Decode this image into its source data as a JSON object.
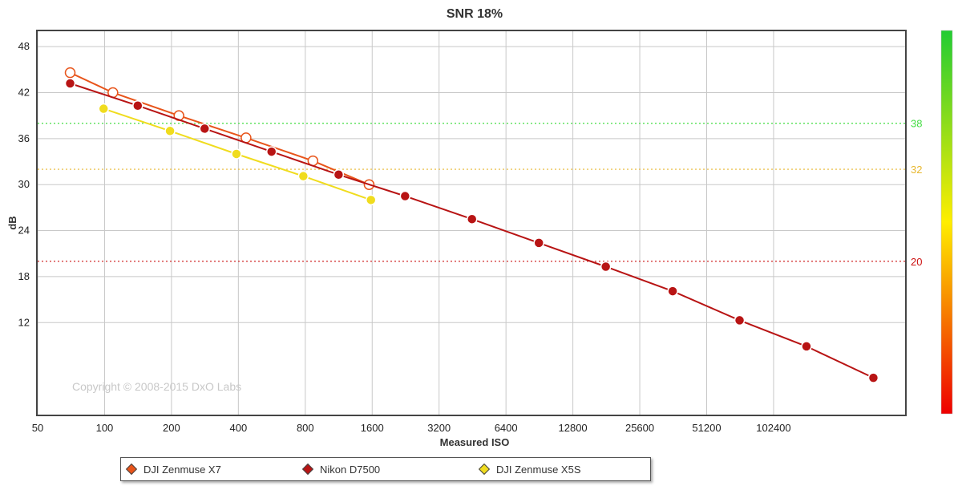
{
  "chart_data": {
    "type": "line",
    "title": "SNR 18%",
    "xlabel": "Measured ISO",
    "ylabel": "dB",
    "x_scale": "log2",
    "xlim": [
      50,
      400000
    ],
    "ylim": [
      0,
      50
    ],
    "x_ticks": [
      50,
      100,
      200,
      400,
      800,
      1600,
      3200,
      6400,
      12800,
      25600,
      51200,
      102400
    ],
    "y_ticks": [
      12,
      18,
      24,
      30,
      36,
      42,
      48
    ],
    "grid": true,
    "legend_position": "bottom",
    "watermark": "Copyright © 2008-2015 DxO Labs",
    "reference_lines": [
      {
        "value": 38,
        "label": "38",
        "color": "#44dd44"
      },
      {
        "value": 32,
        "label": "32",
        "color": "#e8b830"
      },
      {
        "value": 20,
        "label": "20",
        "color": "#cc1111"
      }
    ],
    "colorbar": {
      "top_color": "#22cc33",
      "mid_color": "#ffee00",
      "bottom_color": "#ee0000"
    },
    "series": [
      {
        "name": "DJI Zenmuse X7",
        "color": "#e8541a",
        "marker": "hollow",
        "points": [
          [
            70,
            44.6
          ],
          [
            109,
            42.0
          ],
          [
            216,
            39.0
          ],
          [
            433,
            36.1
          ],
          [
            866,
            33.1
          ],
          [
            1550,
            30.0
          ]
        ]
      },
      {
        "name": "Nikon D7500",
        "color": "#b81414",
        "marker": "filled",
        "points": [
          [
            70,
            43.2
          ],
          [
            141,
            40.3
          ],
          [
            282,
            37.3
          ],
          [
            564,
            34.3
          ],
          [
            1130,
            31.3
          ],
          [
            2250,
            28.5
          ],
          [
            4500,
            25.5
          ],
          [
            9000,
            22.4
          ],
          [
            18000,
            19.3
          ],
          [
            36000,
            16.1
          ],
          [
            72000,
            12.3
          ],
          [
            144000,
            8.9
          ],
          [
            288000,
            4.8
          ]
        ]
      },
      {
        "name": "DJI Zenmuse X5S",
        "color": "#f0dc1e",
        "marker": "filled",
        "points": [
          [
            99,
            39.9
          ],
          [
            197,
            37.0
          ],
          [
            392,
            34.0
          ],
          [
            784,
            31.1
          ],
          [
            1580,
            28.0
          ]
        ]
      }
    ]
  }
}
